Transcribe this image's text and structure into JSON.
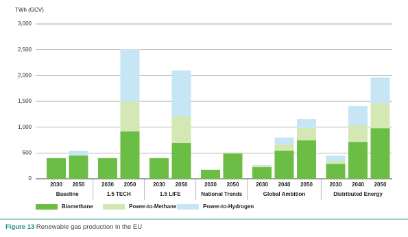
{
  "chart_data": {
    "type": "stacked_bar",
    "y_label": "TWh (GCV)",
    "groups": [
      {
        "name": "Baseline",
        "categories": [
          "2030",
          "2050"
        ]
      },
      {
        "name": "1.5 TECH",
        "categories": [
          "2030",
          "2050"
        ]
      },
      {
        "name": "1.5 LIFE",
        "categories": [
          "2030",
          "2050"
        ]
      },
      {
        "name": "National Trends",
        "categories": [
          "2030",
          "2050"
        ]
      },
      {
        "name": "Global Ambition",
        "categories": [
          "2030",
          "2040",
          "2050"
        ]
      },
      {
        "name": "Distributed Energy",
        "categories": [
          "2030",
          "2040",
          "2050"
        ]
      }
    ],
    "series": [
      {
        "name": "Biomethane",
        "color": "#6cbd45",
        "values": [
          400,
          450,
          400,
          920,
          400,
          690,
          175,
          490,
          225,
          545,
          745,
          290,
          715,
          980
        ]
      },
      {
        "name": "Power-to-Methane",
        "color": "#d4e8b5",
        "values": [
          0,
          0,
          0,
          580,
          0,
          530,
          0,
          20,
          25,
          120,
          240,
          55,
          320,
          480
        ]
      },
      {
        "name": "Power-to-Hydrogen",
        "color": "#c6e6f6",
        "values": [
          0,
          95,
          0,
          1000,
          0,
          880,
          0,
          0,
          15,
          135,
          170,
          105,
          375,
          505
        ]
      }
    ],
    "ylim": [
      0,
      3000
    ],
    "yticks": [
      0,
      {
        "value": 500,
        "label": "500"
      },
      {
        "value": 1000,
        "label": "1,000"
      },
      {
        "value": 1500,
        "label": "1,500"
      },
      {
        "value": 2000,
        "label": "2,000"
      },
      {
        "value": 2500,
        "label": "2,500"
      },
      {
        "value": 3000,
        "label": "3,000"
      }
    ],
    "grid": true,
    "caption": {
      "label": "Figure 13",
      "text": "Renewable gas production in the EU"
    }
  }
}
